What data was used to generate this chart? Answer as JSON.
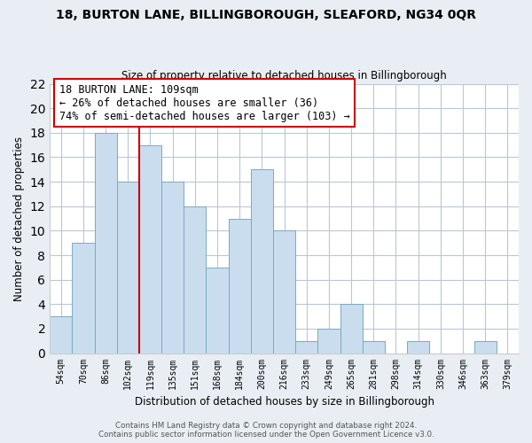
{
  "title": "18, BURTON LANE, BILLINGBOROUGH, SLEAFORD, NG34 0QR",
  "subtitle": "Size of property relative to detached houses in Billingborough",
  "xlabel": "Distribution of detached houses by size in Billingborough",
  "ylabel": "Number of detached properties",
  "bins": [
    "54sqm",
    "70sqm",
    "86sqm",
    "102sqm",
    "119sqm",
    "135sqm",
    "151sqm",
    "168sqm",
    "184sqm",
    "200sqm",
    "216sqm",
    "233sqm",
    "249sqm",
    "265sqm",
    "281sqm",
    "298sqm",
    "314sqm",
    "330sqm",
    "346sqm",
    "363sqm",
    "379sqm"
  ],
  "values": [
    3,
    9,
    18,
    14,
    17,
    14,
    12,
    7,
    11,
    15,
    10,
    1,
    2,
    4,
    1,
    0,
    1,
    0,
    0,
    1,
    0
  ],
  "bar_color": "#c9ddef",
  "bar_edge_color": "#7aaabf",
  "vline_x": 3.5,
  "vline_color": "#cc0000",
  "annotation_text": "18 BURTON LANE: 109sqm\n← 26% of detached houses are smaller (36)\n74% of semi-detached houses are larger (103) →",
  "annotation_box_color": "#ffffff",
  "annotation_box_edge_color": "#cc0000",
  "ylim": [
    0,
    22
  ],
  "yticks": [
    0,
    2,
    4,
    6,
    8,
    10,
    12,
    14,
    16,
    18,
    20,
    22
  ],
  "footer": "Contains HM Land Registry data © Crown copyright and database right 2024.\nContains public sector information licensed under the Open Government Licence v3.0.",
  "bg_color": "#e8eef4",
  "plot_bg_color": "#ffffff",
  "grid_color": "#b8c8d8"
}
